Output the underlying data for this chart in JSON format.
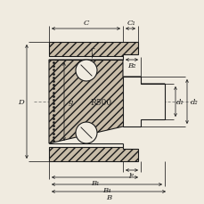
{
  "bg_color": "#f0ebe0",
  "line_color": "#1a1a1a",
  "hatch_fc": "#c8bca8",
  "dim_color": "#1a1a1a",
  "labels": {
    "C": "C",
    "C1": "C₁",
    "B2": "B₂",
    "r": "r",
    "D": "D",
    "g": "g",
    "R500": "R500",
    "d1": "d₁",
    "d2": "d₂",
    "lg": "lᵍ",
    "B1": "B₁",
    "B4": "B₄",
    "B": "B"
  },
  "font_size": 6.0
}
